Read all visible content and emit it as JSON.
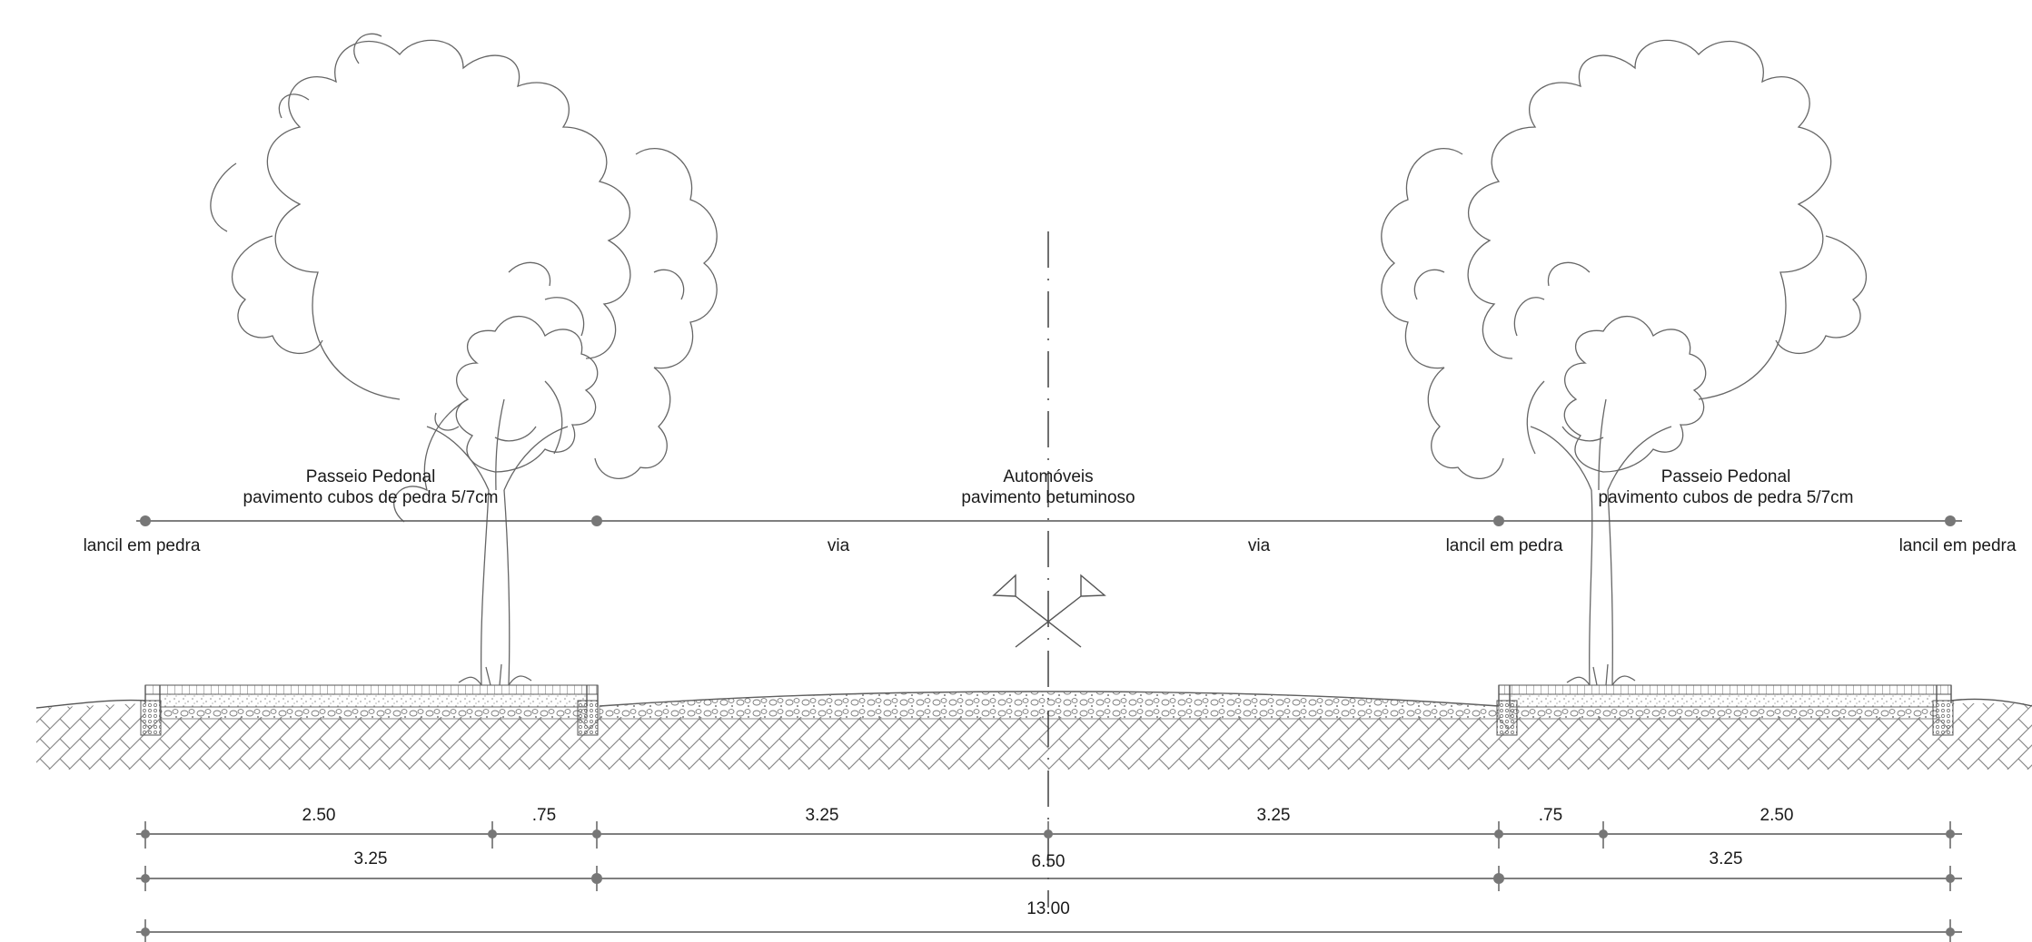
{
  "labels": {
    "left_sidewalk_title": "Passeio Pedonal",
    "left_sidewalk_paving": "pavimento cubos de pedra 5/7cm",
    "road_title": "Automóveis",
    "road_paving": "pavimento betuminoso",
    "right_sidewalk_title": "Passeio Pedonal",
    "right_sidewalk_paving": "pavimento cubos de pedra 5/7cm",
    "curb_left": "lancil em pedra",
    "via_left": "via",
    "via_right": "via",
    "curb_center_right": "lancil em pedra",
    "curb_right": "lancil em pedra"
  },
  "dimensions": {
    "row1": [
      "2.50",
      ".75",
      "3.25",
      "3.25",
      ".75",
      "2.50"
    ],
    "row2": [
      "3.25",
      "6.50",
      "3.25"
    ],
    "row3": [
      "13.00"
    ]
  },
  "colors": {
    "line": "#555555",
    "hatch": "#8a8a8a",
    "text": "#1a1a1a",
    "background": "#ffffff"
  }
}
